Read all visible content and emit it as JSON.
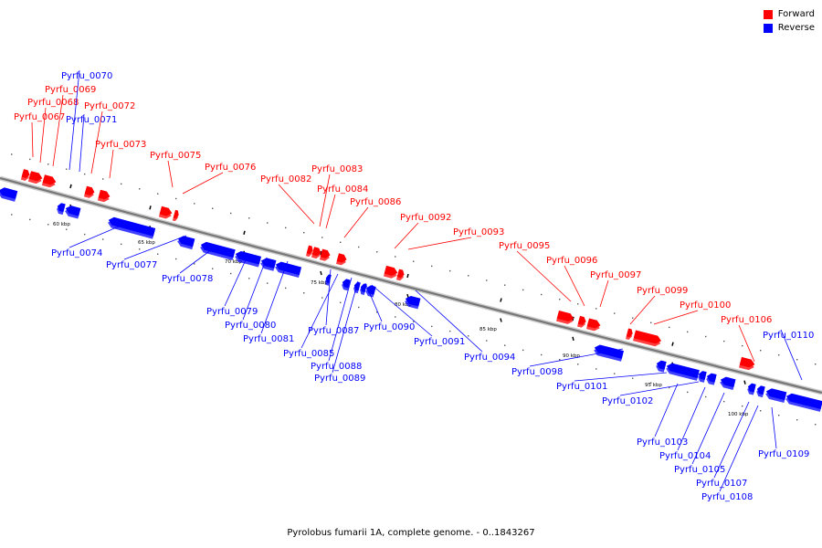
{
  "legend": [
    {
      "label": "Forward",
      "color": "#ff0000"
    },
    {
      "label": "Reverse",
      "color": "#0000ff"
    }
  ],
  "caption": "Pyrolobus fumarii 1A, complete genome. - 0..1843267",
  "colors": {
    "forward": "#ff0000",
    "reverse": "#0000ff",
    "backbone": "#777777"
  },
  "scale_labels": [
    "60 kbp",
    "65 kbp",
    "70 kbp",
    "75 kbp",
    "80 kbp",
    "85 kbp",
    "90 kbp",
    "95 kbp",
    "100 kbp"
  ],
  "genes": [
    {
      "name": "Pyrfu_0067",
      "strand": "forward"
    },
    {
      "name": "Pyrfu_0068",
      "strand": "forward"
    },
    {
      "name": "Pyrfu_0069",
      "strand": "forward"
    },
    {
      "name": "Pyrfu_0070",
      "strand": "reverse"
    },
    {
      "name": "Pyrfu_0071",
      "strand": "reverse"
    },
    {
      "name": "Pyrfu_0072",
      "strand": "forward"
    },
    {
      "name": "Pyrfu_0073",
      "strand": "forward"
    },
    {
      "name": "Pyrfu_0074",
      "strand": "reverse"
    },
    {
      "name": "Pyrfu_0075",
      "strand": "forward"
    },
    {
      "name": "Pyrfu_0076",
      "strand": "forward"
    },
    {
      "name": "Pyrfu_0077",
      "strand": "reverse"
    },
    {
      "name": "Pyrfu_0078",
      "strand": "reverse"
    },
    {
      "name": "Pyrfu_0079",
      "strand": "reverse"
    },
    {
      "name": "Pyrfu_0080",
      "strand": "reverse"
    },
    {
      "name": "Pyrfu_0081",
      "strand": "reverse"
    },
    {
      "name": "Pyrfu_0082",
      "strand": "forward"
    },
    {
      "name": "Pyrfu_0083",
      "strand": "forward"
    },
    {
      "name": "Pyrfu_0084",
      "strand": "forward"
    },
    {
      "name": "Pyrfu_0085",
      "strand": "reverse"
    },
    {
      "name": "Pyrfu_0086",
      "strand": "forward"
    },
    {
      "name": "Pyrfu_0087",
      "strand": "reverse"
    },
    {
      "name": "Pyrfu_0088",
      "strand": "reverse"
    },
    {
      "name": "Pyrfu_0089",
      "strand": "reverse"
    },
    {
      "name": "Pyrfu_0090",
      "strand": "reverse"
    },
    {
      "name": "Pyrfu_0091",
      "strand": "reverse"
    },
    {
      "name": "Pyrfu_0092",
      "strand": "forward"
    },
    {
      "name": "Pyrfu_0093",
      "strand": "forward"
    },
    {
      "name": "Pyrfu_0094",
      "strand": "reverse"
    },
    {
      "name": "Pyrfu_0095",
      "strand": "forward"
    },
    {
      "name": "Pyrfu_0096",
      "strand": "forward"
    },
    {
      "name": "Pyrfu_0097",
      "strand": "forward"
    },
    {
      "name": "Pyrfu_0098",
      "strand": "reverse"
    },
    {
      "name": "Pyrfu_0099",
      "strand": "forward"
    },
    {
      "name": "Pyrfu_0100",
      "strand": "forward"
    },
    {
      "name": "Pyrfu_0101",
      "strand": "reverse"
    },
    {
      "name": "Pyrfu_0102",
      "strand": "reverse"
    },
    {
      "name": "Pyrfu_0103",
      "strand": "reverse"
    },
    {
      "name": "Pyrfu_0104",
      "strand": "reverse"
    },
    {
      "name": "Pyrfu_0105",
      "strand": "reverse"
    },
    {
      "name": "Pyrfu_0106",
      "strand": "forward"
    },
    {
      "name": "Pyrfu_0107",
      "strand": "reverse"
    },
    {
      "name": "Pyrfu_0108",
      "strand": "reverse"
    },
    {
      "name": "Pyrfu_0109",
      "strand": "reverse"
    },
    {
      "name": "Pyrfu_0110",
      "strand": "reverse"
    }
  ]
}
